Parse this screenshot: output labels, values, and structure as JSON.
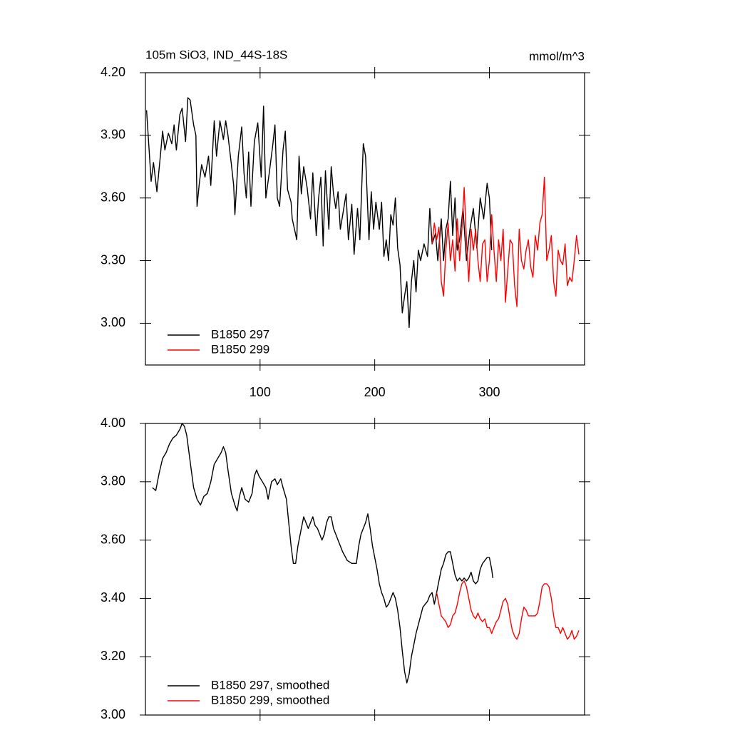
{
  "chart_data": [
    {
      "type": "line",
      "title": "105m SiO3, IND_44S-18S",
      "units": "mmol/m^3",
      "xlim": [
        0,
        383
      ],
      "ylim": [
        2.8,
        4.2
      ],
      "xticks": [
        100,
        200,
        300
      ],
      "yticks": [
        {
          "value": 3.0,
          "label": "3.00"
        },
        {
          "value": 3.3,
          "label": "3.30"
        },
        {
          "value": 3.6,
          "label": "3.60"
        },
        {
          "value": 3.9,
          "label": "3.90"
        },
        {
          "value": 4.2,
          "label": "4.20"
        }
      ],
      "series": [
        {
          "name": "B1850 297",
          "color": "#000000",
          "x": [
            1,
            3,
            5,
            7,
            10,
            13,
            15,
            17,
            20,
            23,
            25,
            27,
            30,
            32,
            35,
            37,
            39,
            42,
            44,
            45,
            47,
            49,
            52,
            55,
            57,
            60,
            62,
            65,
            68,
            70,
            72,
            75,
            77,
            78,
            81,
            84,
            86,
            88,
            90,
            92,
            95,
            98,
            101,
            103,
            105,
            108,
            111,
            113,
            115,
            117,
            120,
            122,
            124,
            127,
            128,
            130,
            132,
            134,
            136,
            138,
            141,
            144,
            146,
            149,
            151,
            153,
            155,
            157,
            160,
            162,
            164,
            166,
            168,
            170,
            173,
            175,
            177,
            180,
            182,
            185,
            187,
            190,
            192,
            195,
            197,
            199,
            201,
            204,
            206,
            208,
            210,
            212,
            214,
            216,
            218,
            220,
            222,
            224,
            226,
            228,
            230,
            232,
            234,
            236,
            238,
            240,
            243,
            246,
            248,
            250,
            253,
            255,
            258,
            260,
            262,
            264,
            266,
            268,
            270,
            272,
            274,
            277,
            280,
            283,
            286,
            289,
            292,
            295,
            298,
            300,
            302
          ],
          "values": [
            4.02,
            3.85,
            3.68,
            3.77,
            3.63,
            3.8,
            3.92,
            3.83,
            3.91,
            3.86,
            3.95,
            3.83,
            4.0,
            4.03,
            3.87,
            4.08,
            4.07,
            3.95,
            3.9,
            3.56,
            3.67,
            3.76,
            3.7,
            3.8,
            3.66,
            3.97,
            3.8,
            3.97,
            3.88,
            3.97,
            3.9,
            3.76,
            3.66,
            3.52,
            3.8,
            3.94,
            3.72,
            3.6,
            3.82,
            3.56,
            3.87,
            3.96,
            3.7,
            4.04,
            3.6,
            3.72,
            3.85,
            3.95,
            3.6,
            3.56,
            3.83,
            3.92,
            3.64,
            3.58,
            3.5,
            3.45,
            3.4,
            3.8,
            3.62,
            3.75,
            3.65,
            3.5,
            3.72,
            3.42,
            3.6,
            3.7,
            3.37,
            3.73,
            3.45,
            3.75,
            3.62,
            3.55,
            3.63,
            3.45,
            3.55,
            3.62,
            3.4,
            3.57,
            3.33,
            3.55,
            3.4,
            3.86,
            3.8,
            3.4,
            3.63,
            3.45,
            3.58,
            3.45,
            3.58,
            3.32,
            3.4,
            3.3,
            3.52,
            3.47,
            3.6,
            3.36,
            3.28,
            3.05,
            3.13,
            3.2,
            2.98,
            3.2,
            3.3,
            3.15,
            3.35,
            3.3,
            3.38,
            3.32,
            3.55,
            3.38,
            3.43,
            3.3,
            3.5,
            3.3,
            3.45,
            3.5,
            3.68,
            3.42,
            3.6,
            3.35,
            3.4,
            3.55,
            3.3,
            3.45,
            3.55,
            3.36,
            3.6,
            3.5,
            3.67,
            3.6,
            3.35
          ]
        },
        {
          "name": "B1850 299",
          "color": "#ff0000",
          "x": [
            250,
            252,
            254,
            256,
            258,
            260,
            262,
            264,
            266,
            268,
            270,
            272,
            274,
            276,
            278,
            280,
            282,
            284,
            286,
            288,
            290,
            292,
            294,
            296,
            298,
            300,
            302,
            304,
            306,
            308,
            310,
            312,
            314,
            316,
            318,
            320,
            322,
            324,
            326,
            328,
            330,
            332,
            334,
            336,
            338,
            340,
            342,
            344,
            346,
            348,
            350,
            352,
            354,
            356,
            358,
            360,
            362,
            364,
            366,
            368,
            370,
            372,
            374,
            376,
            378
          ],
          "values": [
            3.38,
            3.48,
            3.4,
            3.46,
            3.2,
            3.13,
            3.35,
            3.48,
            3.3,
            3.4,
            3.25,
            3.5,
            3.3,
            3.45,
            3.65,
            3.4,
            3.2,
            3.45,
            3.35,
            3.45,
            3.3,
            3.2,
            3.38,
            3.4,
            3.2,
            3.3,
            3.52,
            3.35,
            3.2,
            3.4,
            3.3,
            3.45,
            3.1,
            3.25,
            3.4,
            3.38,
            3.18,
            3.08,
            3.45,
            3.3,
            3.26,
            3.35,
            3.4,
            3.27,
            3.22,
            3.42,
            3.35,
            3.48,
            3.52,
            3.7,
            3.3,
            3.35,
            3.42,
            3.2,
            3.13,
            3.35,
            3.3,
            3.28,
            3.38,
            3.18,
            3.22,
            3.2,
            3.3,
            3.42,
            3.33
          ]
        }
      ]
    },
    {
      "type": "line",
      "xlim": [
        0,
        383
      ],
      "ylim": [
        3.0,
        4.0
      ],
      "yticks": [
        {
          "value": 3.0,
          "label": "3.00"
        },
        {
          "value": 3.2,
          "label": "3.20"
        },
        {
          "value": 3.4,
          "label": "3.40"
        },
        {
          "value": 3.6,
          "label": "3.60"
        },
        {
          "value": 3.8,
          "label": "3.80"
        },
        {
          "value": 4.0,
          "label": "4.00"
        }
      ],
      "series": [
        {
          "name": "B1850 297, smoothed",
          "color": "#000000",
          "x": [
            6,
            9,
            12,
            15,
            18,
            21,
            24,
            27,
            30,
            32,
            34,
            36,
            38,
            40,
            42,
            45,
            48,
            51,
            54,
            57,
            60,
            63,
            66,
            68,
            70,
            72,
            75,
            78,
            80,
            82,
            84,
            87,
            90,
            93,
            95,
            97,
            99,
            102,
            105,
            107,
            110,
            113,
            115,
            118,
            120,
            123,
            125,
            127,
            129,
            131,
            133,
            136,
            138,
            140,
            142,
            144,
            146,
            148,
            150,
            152,
            154,
            156,
            158,
            160,
            162,
            164,
            166,
            168,
            172,
            176,
            180,
            184,
            186,
            188,
            190,
            192,
            194,
            196,
            198,
            200,
            202,
            204,
            206,
            208,
            210,
            212,
            214,
            216,
            218,
            220,
            222,
            224,
            226,
            228,
            230,
            232,
            234,
            236,
            238,
            240,
            242,
            244,
            246,
            248,
            250,
            252,
            254,
            256,
            258,
            260,
            262,
            264,
            266,
            268,
            270,
            272,
            274,
            276,
            278,
            280,
            282,
            284,
            286,
            288,
            290,
            292,
            294,
            296,
            298,
            300,
            302,
            303
          ],
          "values": [
            3.78,
            3.77,
            3.83,
            3.88,
            3.9,
            3.93,
            3.95,
            3.96,
            3.98,
            4.0,
            3.99,
            3.96,
            3.9,
            3.84,
            3.78,
            3.74,
            3.72,
            3.75,
            3.76,
            3.8,
            3.86,
            3.88,
            3.9,
            3.92,
            3.9,
            3.84,
            3.76,
            3.72,
            3.7,
            3.75,
            3.78,
            3.74,
            3.73,
            3.76,
            3.82,
            3.84,
            3.82,
            3.8,
            3.78,
            3.74,
            3.8,
            3.81,
            3.79,
            3.81,
            3.78,
            3.74,
            3.66,
            3.58,
            3.52,
            3.52,
            3.58,
            3.64,
            3.68,
            3.66,
            3.64,
            3.66,
            3.68,
            3.65,
            3.64,
            3.62,
            3.6,
            3.62,
            3.66,
            3.68,
            3.68,
            3.64,
            3.62,
            3.6,
            3.56,
            3.53,
            3.52,
            3.52,
            3.58,
            3.62,
            3.64,
            3.66,
            3.69,
            3.64,
            3.58,
            3.54,
            3.5,
            3.45,
            3.42,
            3.4,
            3.37,
            3.38,
            3.4,
            3.42,
            3.4,
            3.36,
            3.3,
            3.22,
            3.15,
            3.11,
            3.14,
            3.2,
            3.24,
            3.28,
            3.31,
            3.34,
            3.37,
            3.38,
            3.39,
            3.41,
            3.42,
            3.38,
            3.42,
            3.46,
            3.5,
            3.52,
            3.55,
            3.56,
            3.56,
            3.52,
            3.48,
            3.46,
            3.47,
            3.46,
            3.47,
            3.46,
            3.47,
            3.49,
            3.46,
            3.45,
            3.46,
            3.5,
            3.52,
            3.53,
            3.54,
            3.54,
            3.5,
            3.47
          ]
        },
        {
          "name": "B1850 299, smoothed",
          "color": "#ff0000",
          "x": [
            254,
            256,
            258,
            260,
            262,
            264,
            266,
            268,
            270,
            272,
            274,
            276,
            278,
            280,
            282,
            284,
            286,
            288,
            290,
            292,
            294,
            296,
            298,
            300,
            302,
            304,
            306,
            308,
            310,
            312,
            314,
            316,
            318,
            320,
            322,
            324,
            326,
            328,
            330,
            332,
            334,
            336,
            338,
            340,
            342,
            344,
            346,
            348,
            350,
            352,
            354,
            356,
            358,
            360,
            362,
            364,
            366,
            368,
            370,
            372,
            374,
            376,
            378
          ],
          "values": [
            3.42,
            3.38,
            3.34,
            3.33,
            3.32,
            3.3,
            3.31,
            3.34,
            3.35,
            3.38,
            3.42,
            3.45,
            3.46,
            3.44,
            3.4,
            3.36,
            3.34,
            3.33,
            3.35,
            3.33,
            3.32,
            3.33,
            3.3,
            3.3,
            3.28,
            3.3,
            3.32,
            3.33,
            3.36,
            3.39,
            3.4,
            3.38,
            3.33,
            3.29,
            3.27,
            3.26,
            3.28,
            3.33,
            3.37,
            3.36,
            3.34,
            3.34,
            3.34,
            3.34,
            3.35,
            3.39,
            3.44,
            3.45,
            3.45,
            3.44,
            3.4,
            3.34,
            3.3,
            3.3,
            3.28,
            3.3,
            3.28,
            3.26,
            3.27,
            3.29,
            3.26,
            3.27,
            3.29
          ]
        }
      ]
    }
  ]
}
